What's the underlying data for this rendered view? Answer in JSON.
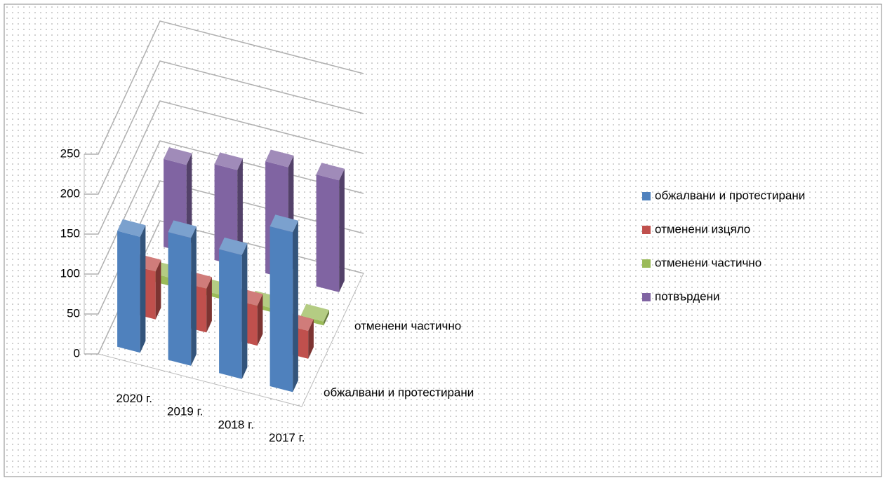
{
  "chart_data": {
    "type": "bar3d",
    "categories": [
      "2020 г.",
      "2019 г.",
      "2018 г.",
      "2017 г."
    ],
    "series": [
      {
        "name": "обжалвани и протестирани",
        "color": "#4f81bd",
        "values": [
          145,
          160,
          155,
          200
        ]
      },
      {
        "name": "отменени изцяло",
        "color": "#c0504d",
        "values": [
          60,
          55,
          50,
          35
        ]
      },
      {
        "name": "отменени частично",
        "color": "#9bbb59",
        "values": [
          10,
          5,
          5,
          5
        ]
      },
      {
        "name": "потвърдени",
        "color": "#8064a2",
        "values": [
          110,
          120,
          140,
          140
        ]
      }
    ],
    "ylim": [
      0,
      250
    ],
    "yticks": [
      0,
      50,
      100,
      150,
      200,
      250
    ],
    "grid": true,
    "legend": "right"
  }
}
